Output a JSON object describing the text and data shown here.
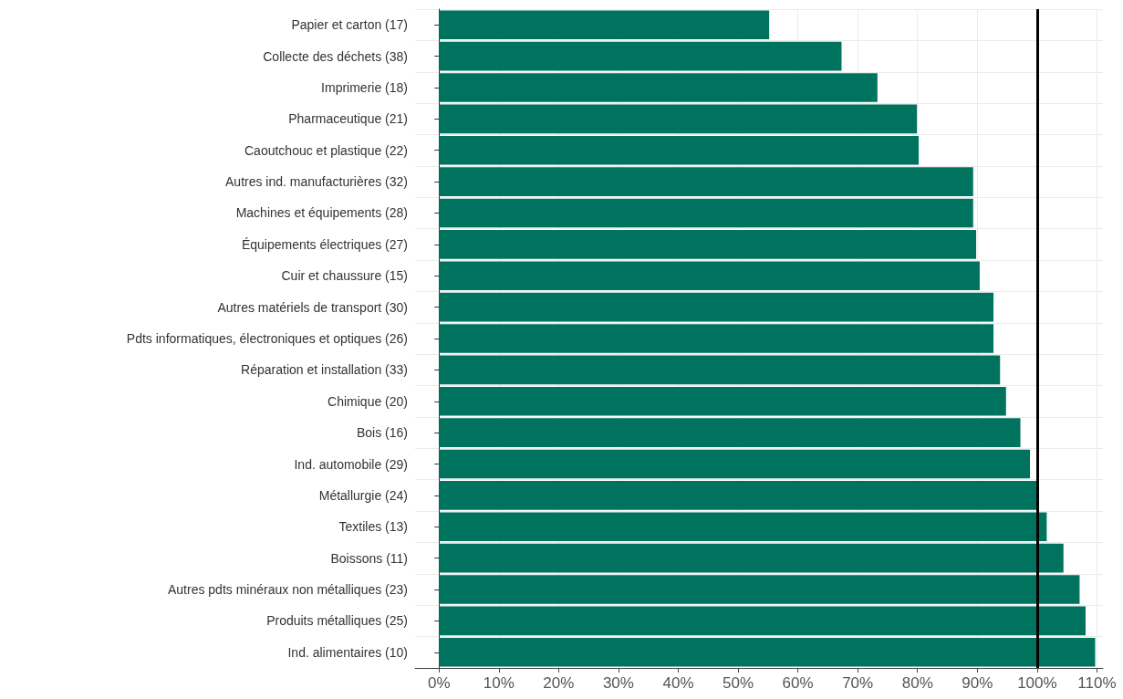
{
  "chart_data": {
    "type": "bar",
    "orientation": "horizontal",
    "categories": [
      "Papier et carton (17)",
      "Collecte des déchets (38)",
      "Imprimerie (18)",
      "Pharmaceutique (21)",
      "Caoutchouc et plastique (22)",
      "Autres ind. manufacturières (32)",
      "Machines et équipements (28)",
      "Équipements électriques (27)",
      "Cuir et chaussure (15)",
      "Autres matériels de transport (30)",
      "Pdts informatiques, électroniques et optiques (26)",
      "Réparation et installation (33)",
      "Chimique (20)",
      "Bois (16)",
      "Ind. automobile (29)",
      "Métallurgie (24)",
      "Textiles (13)",
      "Boissons (11)",
      "Autres pdts minéraux non métalliques (23)",
      "Produits métalliques (25)",
      "Ind. alimentaires (10)"
    ],
    "values": [
      55.2,
      67.3,
      73.3,
      79.9,
      80.2,
      89.3,
      89.3,
      89.8,
      90.4,
      92.7,
      92.7,
      93.8,
      94.8,
      97.2,
      98.8,
      99.9,
      101.6,
      104.4,
      107.1,
      108.1,
      109.7
    ],
    "color": "#00735f",
    "xlim": [
      -4,
      111
    ],
    "xticks": [
      {
        "value": 0,
        "label": "0%"
      },
      {
        "value": 10,
        "label": "10%"
      },
      {
        "value": 20,
        "label": "20%"
      },
      {
        "value": 30,
        "label": "30%"
      },
      {
        "value": 40,
        "label": "40%"
      },
      {
        "value": 50,
        "label": "50%"
      },
      {
        "value": 60,
        "label": "60%"
      },
      {
        "value": 70,
        "label": "70%"
      },
      {
        "value": 80,
        "label": "80%"
      },
      {
        "value": 90,
        "label": "90%"
      },
      {
        "value": 100,
        "label": "100%"
      },
      {
        "value": 110,
        "label": "110%"
      }
    ],
    "grid": true,
    "ref_lines": [
      {
        "axis": "x",
        "value": 100,
        "label": null,
        "color": "#000000"
      }
    ]
  }
}
